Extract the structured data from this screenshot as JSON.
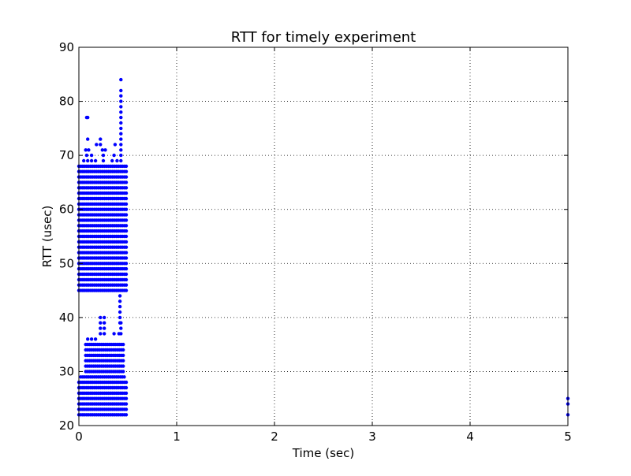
{
  "chart_data": {
    "type": "scatter",
    "title": "RTT for timely experiment",
    "xlabel": "Time (sec)",
    "ylabel": "RTT (usec)",
    "xlim": [
      0,
      5
    ],
    "ylim": [
      20,
      90
    ],
    "x_ticks": [
      0,
      1,
      2,
      3,
      4,
      5
    ],
    "x_tick_labels": [
      "0",
      "1",
      "2",
      "3",
      "4",
      "5"
    ],
    "y_ticks": [
      20,
      30,
      40,
      50,
      60,
      70,
      80,
      90
    ],
    "y_tick_labels": [
      "20",
      "30",
      "40",
      "50",
      "60",
      "70",
      "80",
      "90"
    ],
    "grid": true,
    "grid_style": "dotted",
    "legend": "none",
    "marker_color": "#0000ff",
    "series": [
      {
        "bands": [
          {
            "x_range": [
              0.0,
              0.5
            ],
            "y_values": [
              22,
              23,
              24,
              25,
              26,
              27,
              28
            ]
          },
          {
            "x_range": [
              0.02,
              0.48
            ],
            "y_values": [
              29
            ]
          },
          {
            "x_range": [
              0.07,
              0.47
            ],
            "y_values": [
              30,
              31,
              32,
              33,
              34,
              35
            ]
          },
          {
            "x_range": [
              0.0,
              0.5
            ],
            "y_values": [
              45,
              46,
              47,
              48,
              49,
              50,
              51,
              52,
              53,
              54,
              55,
              56,
              57,
              58,
              59,
              60,
              61,
              62,
              63,
              64,
              65,
              66,
              67,
              68
            ]
          }
        ],
        "points": [
          [
            0.09,
            36
          ],
          [
            0.13,
            36
          ],
          [
            0.17,
            36
          ],
          [
            0.22,
            37
          ],
          [
            0.26,
            37
          ],
          [
            0.36,
            37
          ],
          [
            0.41,
            37
          ],
          [
            0.43,
            37
          ],
          [
            0.22,
            38
          ],
          [
            0.26,
            38
          ],
          [
            0.43,
            38
          ],
          [
            0.22,
            39
          ],
          [
            0.26,
            39
          ],
          [
            0.42,
            39
          ],
          [
            0.43,
            39
          ],
          [
            0.22,
            40
          ],
          [
            0.26,
            40
          ],
          [
            0.42,
            40
          ],
          [
            0.42,
            41
          ],
          [
            0.42,
            42
          ],
          [
            0.42,
            43
          ],
          [
            0.42,
            44
          ],
          [
            0.05,
            69
          ],
          [
            0.09,
            69
          ],
          [
            0.13,
            69
          ],
          [
            0.17,
            69
          ],
          [
            0.25,
            69
          ],
          [
            0.34,
            69
          ],
          [
            0.39,
            69
          ],
          [
            0.43,
            69
          ],
          [
            0.08,
            70
          ],
          [
            0.13,
            70
          ],
          [
            0.25,
            70
          ],
          [
            0.36,
            70
          ],
          [
            0.43,
            70
          ],
          [
            0.07,
            71
          ],
          [
            0.1,
            71
          ],
          [
            0.24,
            71
          ],
          [
            0.27,
            71
          ],
          [
            0.43,
            71
          ],
          [
            0.18,
            72
          ],
          [
            0.22,
            72
          ],
          [
            0.37,
            72
          ],
          [
            0.43,
            72
          ],
          [
            0.09,
            73
          ],
          [
            0.22,
            73
          ],
          [
            0.43,
            73
          ],
          [
            0.43,
            74
          ],
          [
            0.43,
            75
          ],
          [
            0.43,
            76
          ],
          [
            0.08,
            77
          ],
          [
            0.09,
            77
          ],
          [
            0.43,
            77
          ],
          [
            0.43,
            78
          ],
          [
            0.43,
            79
          ],
          [
            0.43,
            80
          ],
          [
            0.43,
            81
          ],
          [
            0.43,
            82
          ],
          [
            0.43,
            84
          ],
          [
            5.0,
            22
          ],
          [
            5.0,
            24
          ],
          [
            5.0,
            25
          ]
        ]
      }
    ]
  }
}
